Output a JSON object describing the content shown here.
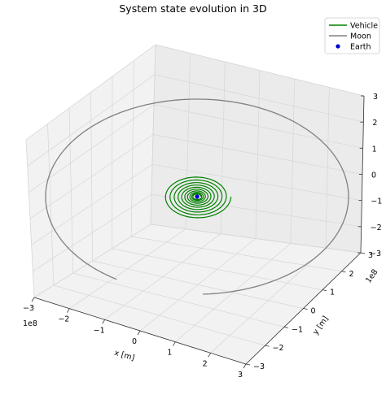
{
  "chart_data": {
    "type": "line3d",
    "title": "System state evolution in 3D",
    "xlabel": "x [m]",
    "ylabel": "y [m]",
    "zlabel": "",
    "offset_label_x": "1e8",
    "offset_label_y": "1e8",
    "xlim": [
      -3,
      3
    ],
    "ylim": [
      -3,
      3
    ],
    "zlim": [
      -3,
      3
    ],
    "xticks": [
      "−3",
      "−2",
      "−1",
      "0",
      "1",
      "2",
      "3"
    ],
    "yticks": [
      "−3",
      "−2",
      "−1",
      "0",
      "1",
      "2",
      "3"
    ],
    "zticks": [
      "−3",
      "−2",
      "−1",
      "0",
      "1",
      "2",
      "3"
    ],
    "grid": true,
    "legend_position": "top-right",
    "series": [
      {
        "name": "Vehicle",
        "color": "#008000",
        "kind": "line",
        "shape": "outward spiral in the x-y plane from radius ≈0.1 to ≈0.85 (units of 1e8), z = 0",
        "r_start": 0.1,
        "r_end": 0.85,
        "turns": 10
      },
      {
        "name": "Moon",
        "color": "#808080",
        "kind": "line",
        "shape": "near-circular orbit in the x-y plane, radius ≈3.8 (units of 1e8), z = 0",
        "radius": 3.8
      },
      {
        "name": "Earth",
        "color": "#0000cc",
        "kind": "scatter",
        "x": [
          0
        ],
        "y": [
          0
        ],
        "z": [
          0
        ]
      }
    ]
  }
}
